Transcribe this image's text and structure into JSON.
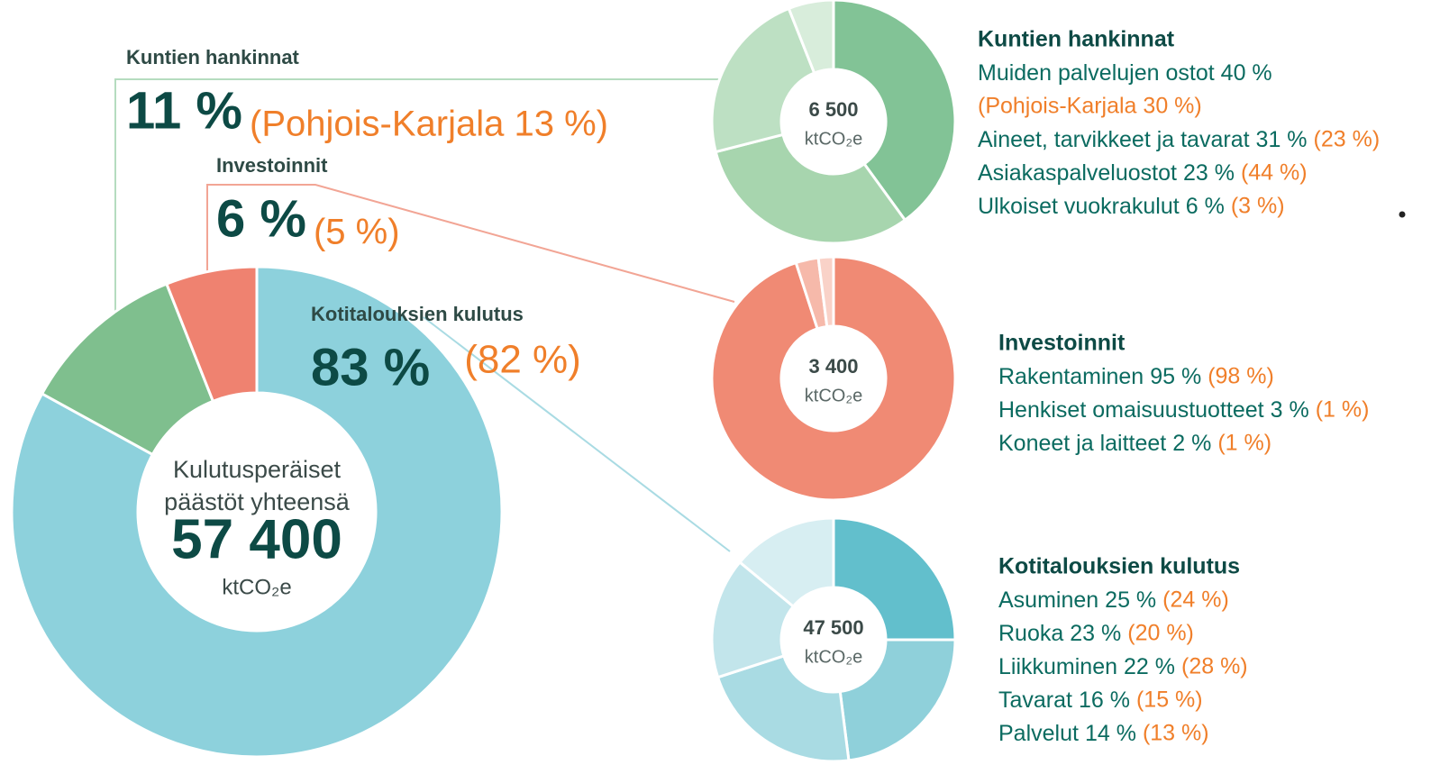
{
  "chart_data": [
    {
      "type": "pie",
      "center_text": [
        "Kulutusperäiset",
        "päästöt yhteensä"
      ],
      "total": {
        "value": 57400,
        "label": "57 400"
      },
      "unit": "ktCO₂e",
      "categories": [
        "Kotitalouksien kulutus",
        "Kuntien hankinnat",
        "Investoinnit"
      ],
      "values": [
        83,
        11,
        6
      ],
      "value_labels": [
        "83 %",
        "11 %",
        "6 %"
      ],
      "comparison_labels": [
        "(82 %)",
        "(Pohjois-Karjala 13 %)",
        "(5 %)"
      ],
      "colors": [
        "#8dd1dc",
        "#7fbf8e",
        "#ef8270"
      ]
    },
    {
      "type": "pie",
      "title": "Kuntien hankinnat",
      "total": {
        "value": 6500,
        "label": "6 500"
      },
      "unit": "ktCO₂e",
      "categories": [
        "Muiden palvelujen ostot",
        "Aineet, tarvikkeet ja tavarat",
        "Asiakaspalveluostot",
        "Ulkoiset vuokrakulut"
      ],
      "values": [
        40,
        31,
        23,
        6
      ],
      "value_labels": [
        "40 %",
        "31 %",
        "23 %",
        "6 %"
      ],
      "comparison_labels": [
        "(Pohjois-Karjala 30 %)",
        "(23 %)",
        "(44 %)",
        "(3 %)"
      ],
      "colors": [
        "#82c396",
        "#a7d5ae",
        "#bde0c3",
        "#d8eddb"
      ]
    },
    {
      "type": "pie",
      "title": "Investoinnit",
      "total": {
        "value": 3400,
        "label": "3 400"
      },
      "unit": "ktCO₂e",
      "categories": [
        "Rakentaminen",
        "Henkiset omaisuustuotteet",
        "Koneet ja laitteet"
      ],
      "values": [
        95,
        3,
        2
      ],
      "value_labels": [
        "95 %",
        "3 %",
        "2 %"
      ],
      "comparison_labels": [
        "(98 %)",
        "(1 %)",
        "(1 %)"
      ],
      "colors": [
        "#f08a74",
        "#f6b9aa",
        "#f9d2c8"
      ]
    },
    {
      "type": "pie",
      "title": "Kotitalouksien kulutus",
      "total": {
        "value": 47500,
        "label": "47 500"
      },
      "unit": "ktCO₂e",
      "categories": [
        "Asuminen",
        "Ruoka",
        "Liikkuminen",
        "Tavarat",
        "Palvelut"
      ],
      "values": [
        25,
        23,
        22,
        16,
        14
      ],
      "value_labels": [
        "25 %",
        "23 %",
        "22 %",
        "16 %",
        "14 %"
      ],
      "comparison_labels": [
        "(24 %)",
        "(20 %)",
        "(28 %)",
        "(15 %)",
        "(13 %)"
      ],
      "colors": [
        "#62bfcc",
        "#8fd0da",
        "#a9dbe3",
        "#c2e5eb",
        "#d7eef2"
      ]
    }
  ]
}
